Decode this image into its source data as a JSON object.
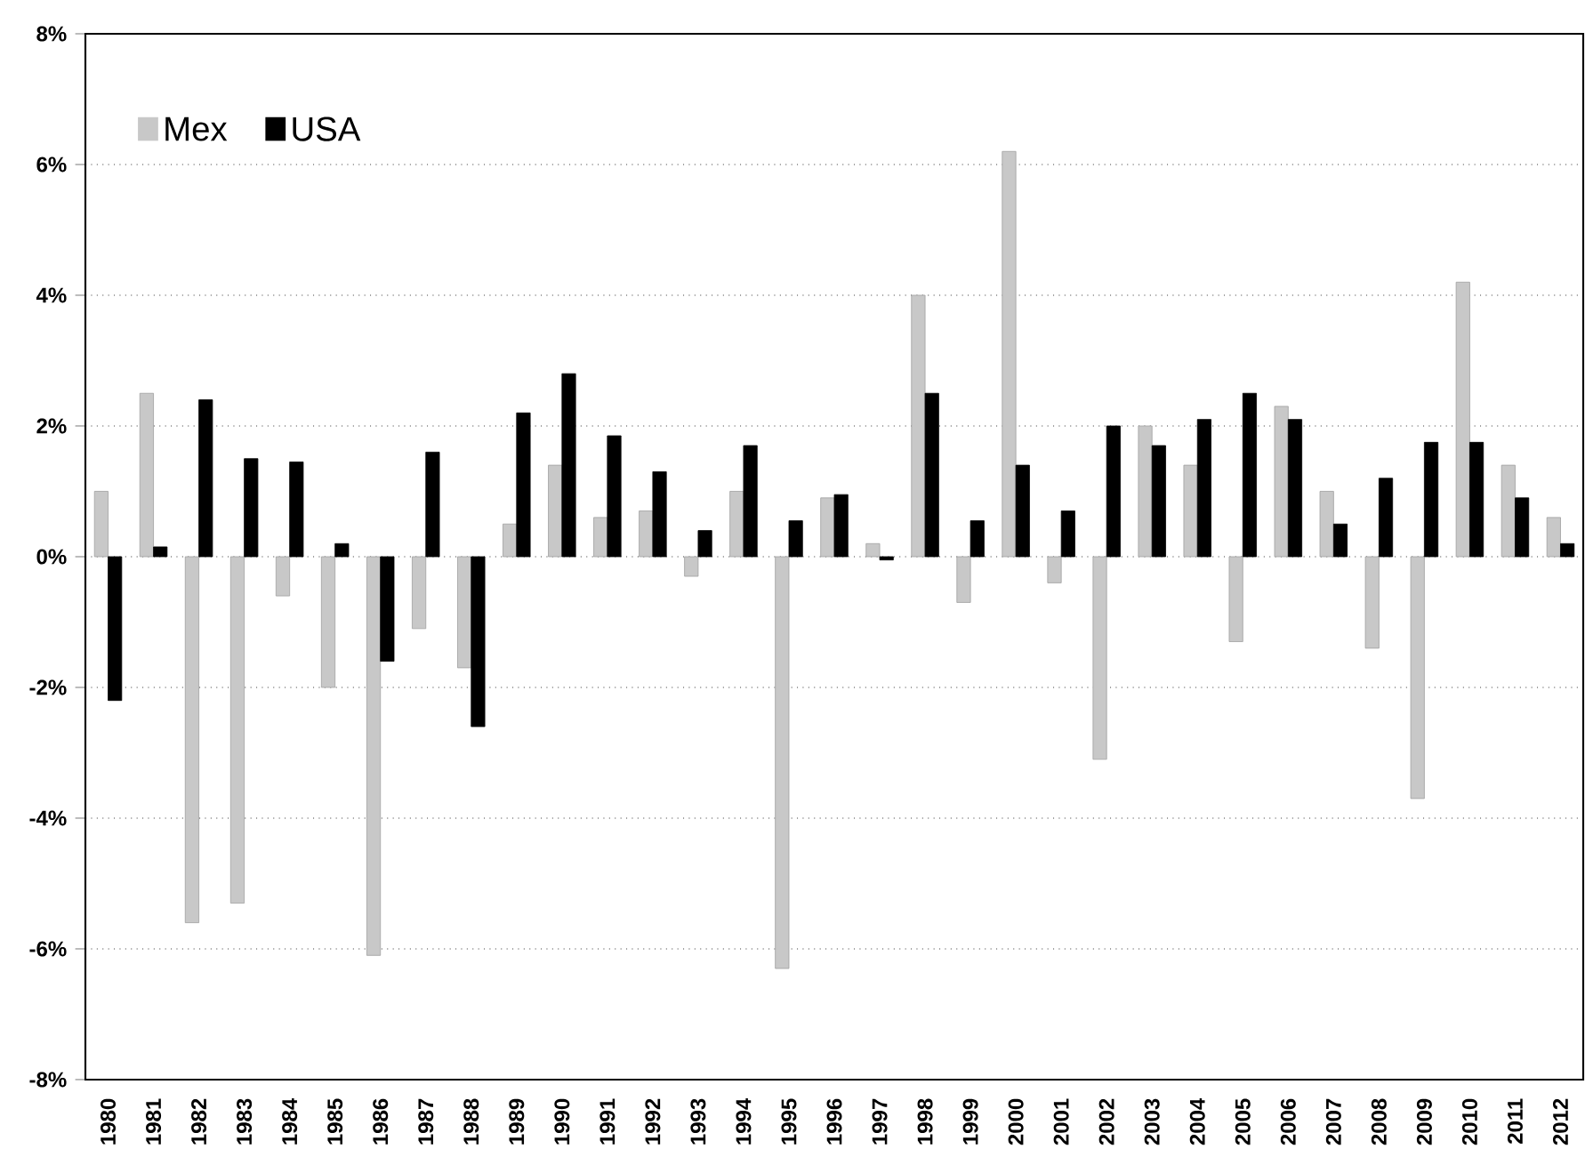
{
  "chart_data": {
    "type": "bar",
    "categories": [
      "1980",
      "1981",
      "1982",
      "1983",
      "1984",
      "1985",
      "1986",
      "1987",
      "1988",
      "1989",
      "1990",
      "1991",
      "1992",
      "1993",
      "1994",
      "1995",
      "1996",
      "1997",
      "1998",
      "1999",
      "2000",
      "2001",
      "2002",
      "2003",
      "2004",
      "2005",
      "2006",
      "2007",
      "2008",
      "2009",
      "2010",
      "2011",
      "2012"
    ],
    "series": [
      {
        "name": "Mex",
        "color": "#c8c8c8",
        "values": [
          1.0,
          2.5,
          -5.6,
          -5.3,
          -0.6,
          -2.0,
          -6.1,
          -1.1,
          -1.7,
          0.5,
          1.4,
          0.6,
          0.7,
          -0.3,
          1.0,
          -6.3,
          0.9,
          0.2,
          4.0,
          -0.7,
          6.2,
          -0.4,
          -3.1,
          2.0,
          1.4,
          -1.3,
          2.3,
          1.0,
          -1.4,
          -3.7,
          4.2,
          1.4,
          0.6
        ]
      },
      {
        "name": "USA",
        "color": "#000000",
        "values": [
          -2.2,
          0.15,
          2.4,
          1.5,
          1.45,
          0.2,
          -1.6,
          1.6,
          -2.6,
          2.2,
          2.8,
          1.85,
          1.3,
          0.4,
          1.7,
          0.55,
          0.95,
          -0.05,
          2.5,
          0.55,
          1.4,
          0.7,
          2.0,
          1.7,
          2.1,
          2.5,
          2.1,
          0.5,
          1.2,
          1.75,
          1.75,
          0.9,
          0.2
        ]
      }
    ],
    "ylim": [
      -8,
      8
    ],
    "yticks": [
      {
        "value": -8,
        "label": "-8%"
      },
      {
        "value": -6,
        "label": "-6%"
      },
      {
        "value": -4,
        "label": "-4%"
      },
      {
        "value": -2,
        "label": "-2%"
      },
      {
        "value": 0,
        "label": "0%"
      },
      {
        "value": 2,
        "label": "2%"
      },
      {
        "value": 4,
        "label": "4%"
      },
      {
        "value": 6,
        "label": "6%"
      },
      {
        "value": 8,
        "label": "8%"
      }
    ],
    "grid": "y",
    "legend": "top left"
  }
}
